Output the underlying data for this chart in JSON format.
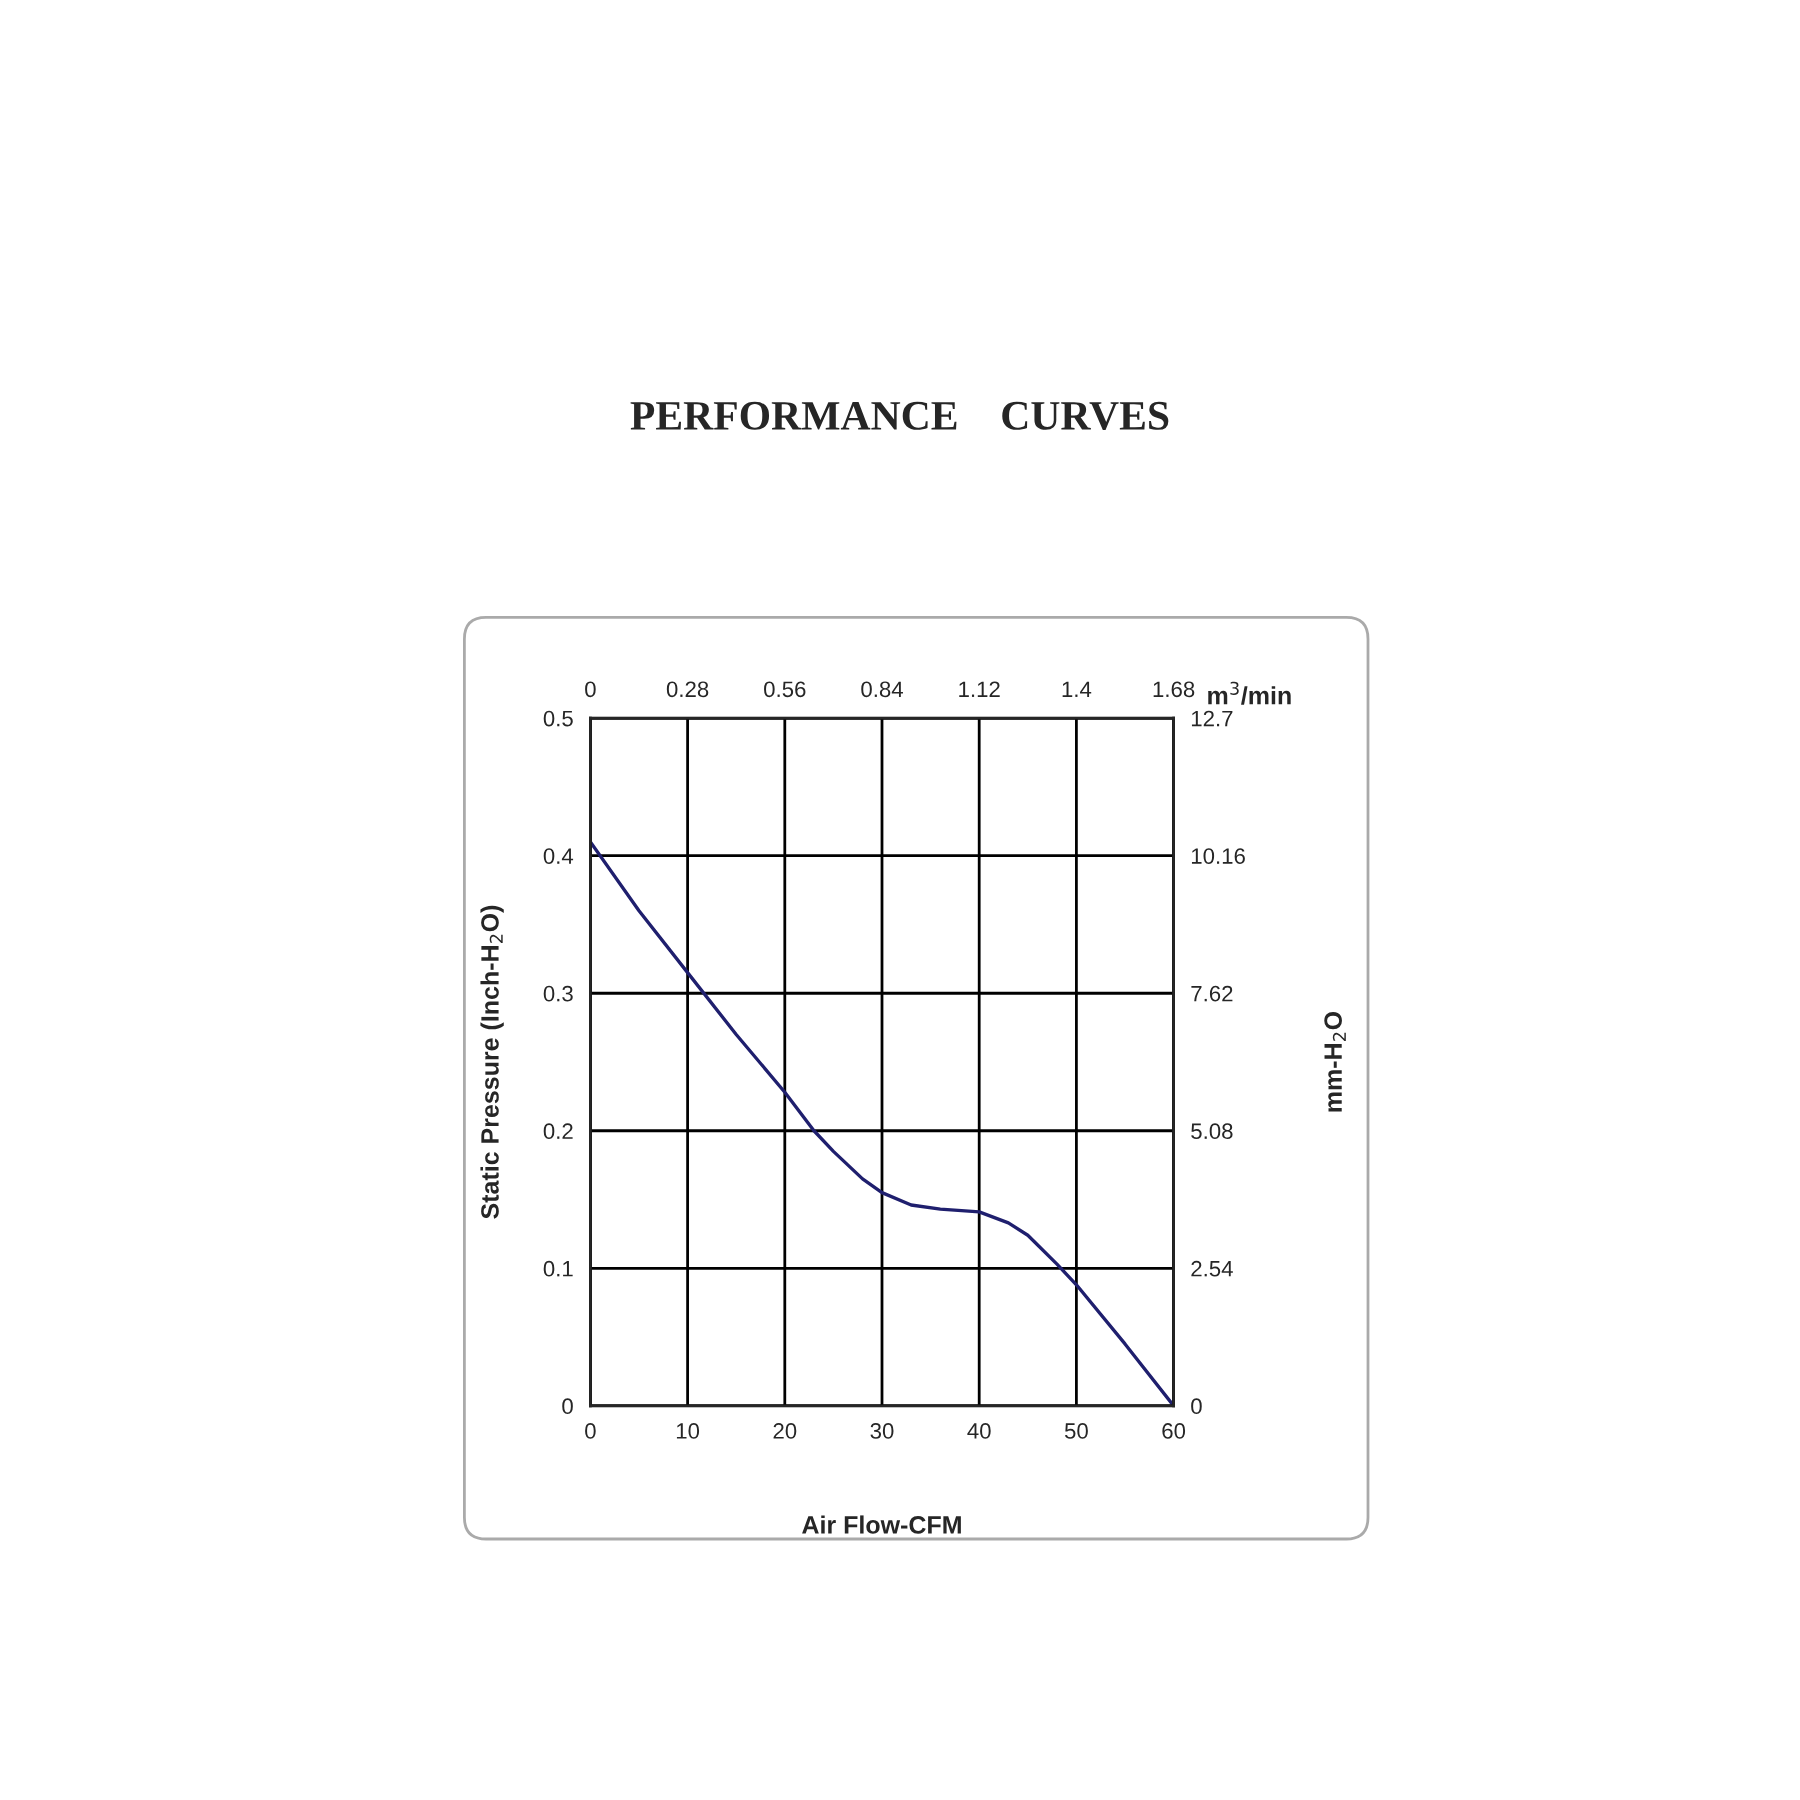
{
  "chart_data": {
    "type": "line",
    "title": "PERFORMANCE    CURVES",
    "xlabel": "Air Flow-CFM",
    "ylabel": "Static Pressure (Inch-H$_{2}$O)",
    "y2label": "mm-H$_{2}$O",
    "x2label": "m$^{3}$/min",
    "x": [
      0,
      5,
      10,
      15,
      20,
      23,
      25,
      28,
      30,
      33,
      36,
      40,
      43,
      45,
      48,
      50,
      55,
      60
    ],
    "series": [
      {
        "color": "#1f1f6e",
        "values": [
          0.41,
          0.36,
          0.315,
          0.27,
          0.228,
          0.2,
          0.185,
          0.165,
          0.155,
          0.146,
          0.143,
          0.141,
          0.133,
          0.124,
          0.103,
          0.088,
          0.045,
          0
        ]
      }
    ],
    "xlim": [
      0,
      60
    ],
    "xticks": [
      0,
      10,
      20,
      30,
      40,
      50,
      60
    ],
    "ylim": [
      0,
      0.5
    ],
    "yticks": [
      0,
      0.1,
      0.2,
      0.3,
      0.4,
      0.5
    ],
    "y2lim": [
      0,
      12.7
    ],
    "y2ticks": [
      0,
      2.54,
      5.08,
      7.62,
      10.16,
      12.7
    ],
    "x2lim": [
      0,
      1.68
    ],
    "x2ticks": [
      0,
      0.28,
      0.56,
      0.84,
      1.12,
      1.4,
      1.68
    ],
    "grid": true,
    "legend": false,
    "marker": "none",
    "line_style": "solid"
  }
}
